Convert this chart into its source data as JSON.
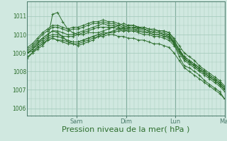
{
  "bg_color": "#d0e8e0",
  "grid_color": "#a0c8b8",
  "line_color": "#2d6e2d",
  "marker": "+",
  "markersize": 3,
  "linewidth": 0.7,
  "xlabel": "Pression niveau de la mer( hPa )",
  "xlabel_fontsize": 8,
  "yticks": [
    1006,
    1007,
    1008,
    1009,
    1010,
    1011
  ],
  "ylim": [
    1005.6,
    1011.8
  ],
  "xlim": [
    0,
    1
  ],
  "day_labels": [
    "Sam",
    "Dim",
    "Lun",
    "Mar"
  ],
  "day_positions": [
    0.25,
    0.5,
    0.75,
    1.0
  ],
  "vline_color": "#4a7a6a",
  "series": [
    [
      1008.7,
      1009.0,
      1009.2,
      1009.4,
      1009.7,
      1011.1,
      1011.2,
      1010.7,
      1010.3,
      1010.1,
      1010.0,
      1010.0,
      1010.1,
      1010.1,
      1010.1,
      1010.2,
      1010.3,
      1010.4,
      1010.5,
      1010.6,
      1010.5,
      1010.5,
      1010.4,
      1010.3,
      1010.2,
      1010.1,
      1010.1,
      1010.1,
      1010.0,
      1009.5,
      1008.8,
      1008.3,
      1008.2,
      1008.0,
      1007.8,
      1007.5,
      1007.3,
      1007.1,
      1006.9,
      1006.5
    ],
    [
      1009.0,
      1009.2,
      1009.5,
      1009.8,
      1010.0,
      1010.2,
      1010.1,
      1009.9,
      1009.6,
      1009.5,
      1009.4,
      1009.5,
      1009.6,
      1009.7,
      1009.9,
      1010.0,
      1010.1,
      1010.2,
      1010.3,
      1010.4,
      1010.5,
      1010.5,
      1010.4,
      1010.4,
      1010.3,
      1010.2,
      1010.2,
      1010.2,
      1010.1,
      1009.7,
      1009.2,
      1008.7,
      1008.5,
      1008.3,
      1008.1,
      1007.9,
      1007.7,
      1007.5,
      1007.3,
      1007.0
    ],
    [
      1009.0,
      1009.2,
      1009.4,
      1009.6,
      1009.8,
      1009.9,
      1009.9,
      1009.8,
      1009.7,
      1009.6,
      1009.6,
      1009.7,
      1009.8,
      1009.9,
      1010.0,
      1010.1,
      1010.1,
      1010.2,
      1010.3,
      1010.3,
      1010.4,
      1010.4,
      1010.4,
      1010.4,
      1010.3,
      1010.3,
      1010.2,
      1010.2,
      1010.1,
      1009.8,
      1009.4,
      1009.0,
      1008.8,
      1008.6,
      1008.3,
      1008.1,
      1007.9,
      1007.7,
      1007.5,
      1007.2
    ],
    [
      1009.0,
      1009.1,
      1009.3,
      1009.5,
      1009.7,
      1009.8,
      1009.7,
      1009.7,
      1009.6,
      1009.6,
      1009.6,
      1009.7,
      1009.8,
      1009.9,
      1010.0,
      1010.0,
      1010.1,
      1010.1,
      1010.2,
      1010.2,
      1010.3,
      1010.3,
      1010.3,
      1010.3,
      1010.2,
      1010.1,
      1010.1,
      1010.0,
      1009.9,
      1009.6,
      1009.2,
      1008.8,
      1008.6,
      1008.4,
      1008.2,
      1008.0,
      1007.8,
      1007.6,
      1007.4,
      1007.1
    ],
    [
      1009.1,
      1009.3,
      1009.6,
      1009.8,
      1010.0,
      1010.2,
      1010.2,
      1010.1,
      1010.0,
      1010.0,
      1010.1,
      1010.2,
      1010.3,
      1010.4,
      1010.5,
      1010.6,
      1010.5,
      1010.5,
      1010.4,
      1010.3,
      1010.2,
      1010.2,
      1010.1,
      1010.0,
      1010.0,
      1009.9,
      1009.9,
      1009.8,
      1009.7,
      1009.4,
      1009.0,
      1008.6,
      1008.4,
      1008.2,
      1008.0,
      1007.8,
      1007.6,
      1007.4,
      1007.2,
      1006.9
    ],
    [
      1009.0,
      1009.2,
      1009.5,
      1009.7,
      1009.9,
      1010.0,
      1010.0,
      1009.9,
      1009.9,
      1009.9,
      1010.0,
      1010.1,
      1010.2,
      1010.3,
      1010.4,
      1010.4,
      1010.4,
      1010.4,
      1010.3,
      1010.2,
      1010.2,
      1010.2,
      1010.2,
      1010.1,
      1010.1,
      1010.0,
      1010.0,
      1009.9,
      1009.8,
      1009.5,
      1009.1,
      1008.7,
      1008.5,
      1008.3,
      1008.1,
      1007.9,
      1007.7,
      1007.5,
      1007.3,
      1007.0
    ],
    [
      1009.2,
      1009.4,
      1009.7,
      1010.0,
      1010.2,
      1010.4,
      1010.4,
      1010.3,
      1010.2,
      1010.3,
      1010.3,
      1010.4,
      1010.5,
      1010.6,
      1010.6,
      1010.7,
      1010.6,
      1010.6,
      1010.5,
      1010.4,
      1010.3,
      1010.3,
      1010.2,
      1010.2,
      1010.1,
      1010.0,
      1010.0,
      1009.9,
      1009.9,
      1009.5,
      1009.1,
      1008.7,
      1008.5,
      1008.3,
      1008.1,
      1007.9,
      1007.7,
      1007.5,
      1007.3,
      1007.0
    ],
    [
      1009.3,
      1009.5,
      1009.8,
      1010.1,
      1010.3,
      1010.5,
      1010.5,
      1010.4,
      1010.3,
      1010.4,
      1010.4,
      1010.5,
      1010.6,
      1010.7,
      1010.7,
      1010.8,
      1010.7,
      1010.7,
      1010.6,
      1010.5,
      1010.4,
      1010.4,
      1010.3,
      1010.3,
      1010.2,
      1010.1,
      1010.1,
      1010.0,
      1010.0,
      1009.6,
      1009.2,
      1008.8,
      1008.6,
      1008.4,
      1008.2,
      1008.0,
      1007.8,
      1007.6,
      1007.4,
      1007.1
    ],
    [
      1008.8,
      1009.0,
      1009.3,
      1009.5,
      1009.7,
      1009.8,
      1009.7,
      1009.6,
      1009.5,
      1009.5,
      1009.5,
      1009.6,
      1009.7,
      1009.8,
      1009.9,
      1009.9,
      1010.0,
      1010.0,
      1009.9,
      1009.9,
      1009.8,
      1009.8,
      1009.7,
      1009.7,
      1009.6,
      1009.5,
      1009.5,
      1009.4,
      1009.3,
      1009.0,
      1008.6,
      1008.2,
      1008.0,
      1007.8,
      1007.6,
      1007.4,
      1007.2,
      1007.0,
      1006.8,
      1006.5
    ]
  ]
}
